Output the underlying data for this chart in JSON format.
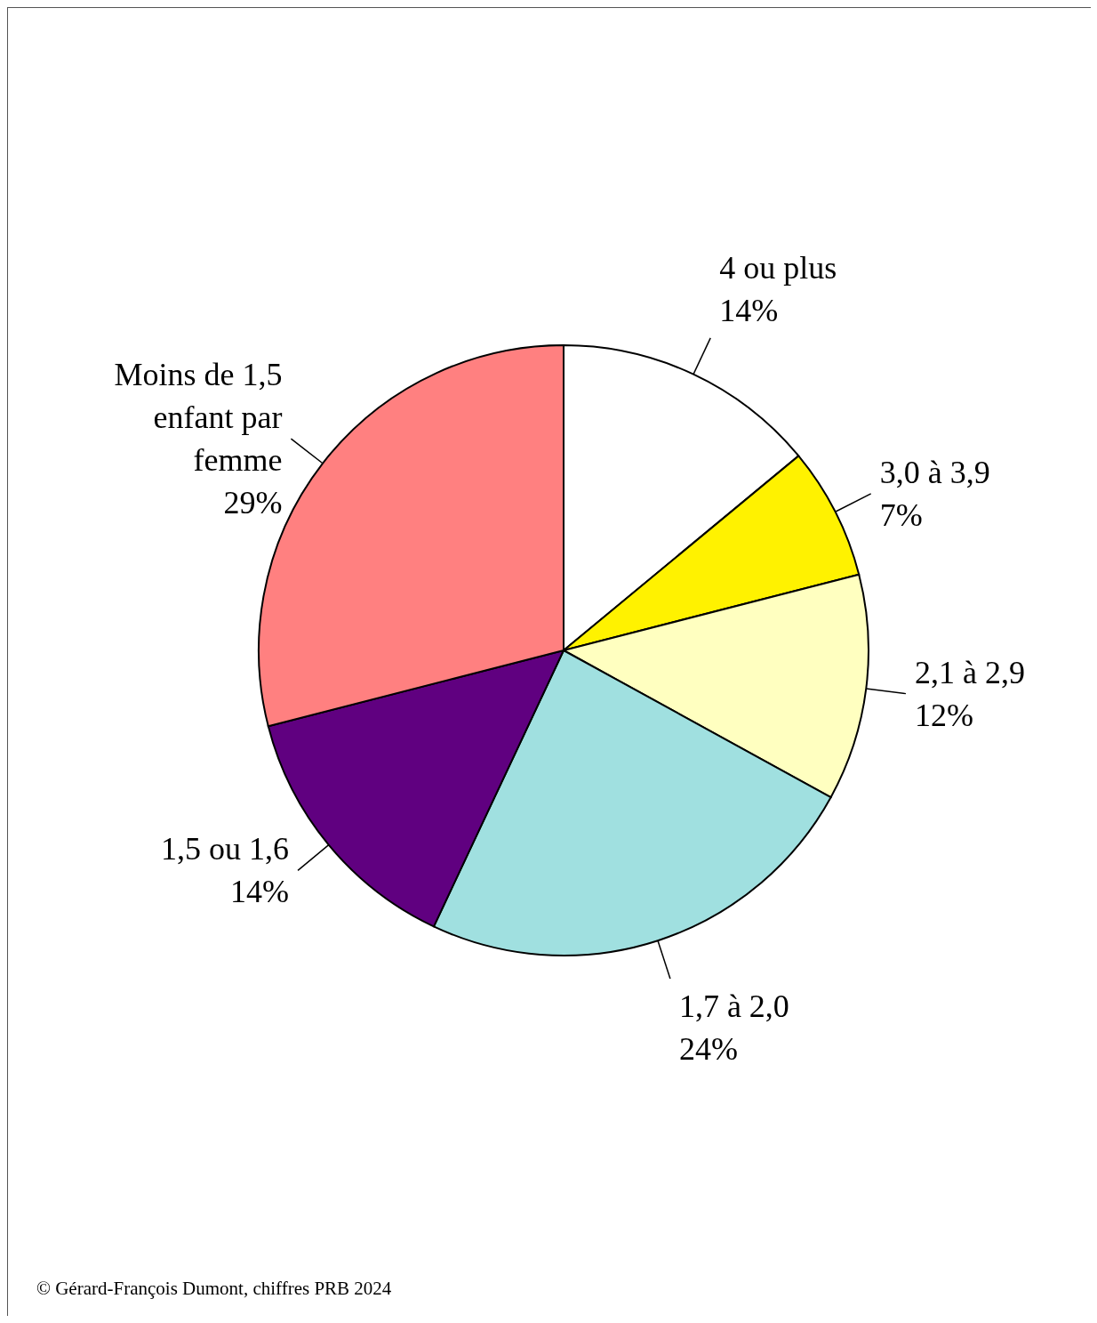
{
  "chart_data": {
    "type": "pie",
    "categories": [
      "4 ou plus",
      "3,0 à 3,9",
      "2,1 à 2,9",
      "1,7 à 2,0",
      "1,5 ou 1,6",
      "Moins de 1,5 enfant par femme"
    ],
    "values": [
      14,
      7,
      12,
      24,
      14,
      29
    ],
    "value_labels": [
      "14%",
      "7%",
      "12%",
      "24%",
      "14%",
      "29%"
    ],
    "colors": [
      "#ffffff",
      "#fff200",
      "#ffffc0",
      "#a0e0e0",
      "#600080",
      "#ff8080"
    ],
    "annotations": [
      "© Gérard-François Dumont, chiffres PRB 2024"
    ]
  }
}
